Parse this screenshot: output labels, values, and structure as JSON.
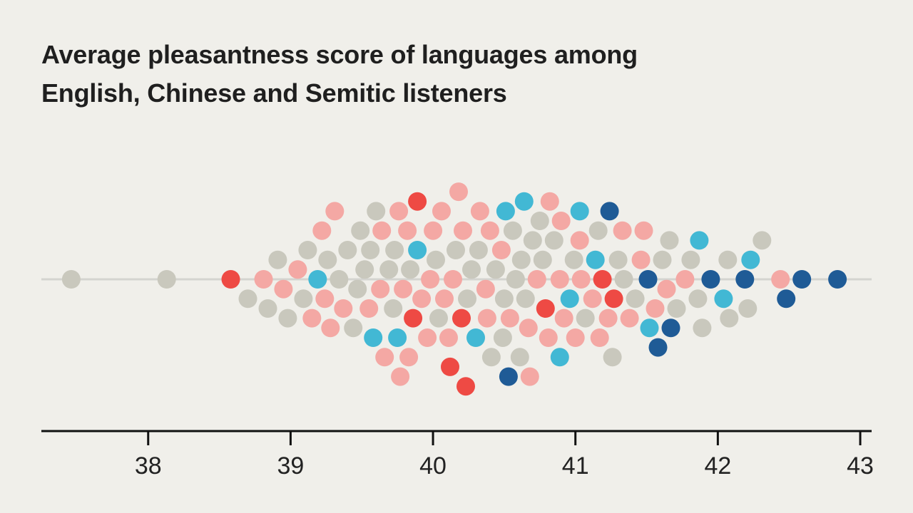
{
  "chart_data": {
    "type": "scatter",
    "title_lines": [
      "Average pleasantness score of languages among",
      "English, Chinese and Semitic listeners"
    ],
    "xlabel": "",
    "ylabel": "",
    "xlim": [
      37.25,
      43.08
    ],
    "x_ticks": [
      38,
      39,
      40,
      41,
      42,
      43
    ],
    "x_tick_labels": [
      "38",
      "39",
      "40",
      "41",
      "42",
      "43"
    ],
    "grid": false,
    "legend": "none",
    "categories": [
      {
        "key": "grey",
        "color": "#c9c8bd"
      },
      {
        "key": "pink",
        "color": "#f4a8a4"
      },
      {
        "key": "red",
        "color": "#ee4a44"
      },
      {
        "key": "cyan",
        "color": "#42b8d4"
      },
      {
        "key": "navy",
        "color": "#1f5b96"
      }
    ],
    "points": [
      {
        "x": 37.46,
        "c": "grey"
      },
      {
        "x": 38.13,
        "c": "grey"
      },
      {
        "x": 38.58,
        "c": "red"
      },
      {
        "x": 38.7,
        "c": "grey"
      },
      {
        "x": 38.81,
        "c": "pink"
      },
      {
        "x": 38.84,
        "c": "grey"
      },
      {
        "x": 38.91,
        "c": "grey"
      },
      {
        "x": 38.95,
        "c": "pink"
      },
      {
        "x": 38.98,
        "c": "grey"
      },
      {
        "x": 39.05,
        "c": "pink"
      },
      {
        "x": 39.09,
        "c": "grey"
      },
      {
        "x": 39.12,
        "c": "grey"
      },
      {
        "x": 39.15,
        "c": "pink"
      },
      {
        "x": 39.19,
        "c": "cyan"
      },
      {
        "x": 39.22,
        "c": "pink"
      },
      {
        "x": 39.24,
        "c": "pink"
      },
      {
        "x": 39.26,
        "c": "grey"
      },
      {
        "x": 39.28,
        "c": "pink"
      },
      {
        "x": 39.31,
        "c": "pink"
      },
      {
        "x": 39.34,
        "c": "grey"
      },
      {
        "x": 39.37,
        "c": "pink"
      },
      {
        "x": 39.4,
        "c": "grey"
      },
      {
        "x": 39.44,
        "c": "grey"
      },
      {
        "x": 39.47,
        "c": "grey"
      },
      {
        "x": 39.49,
        "c": "grey"
      },
      {
        "x": 39.52,
        "c": "grey"
      },
      {
        "x": 39.55,
        "c": "pink"
      },
      {
        "x": 39.56,
        "c": "grey"
      },
      {
        "x": 39.58,
        "c": "cyan"
      },
      {
        "x": 39.6,
        "c": "grey"
      },
      {
        "x": 39.63,
        "c": "pink"
      },
      {
        "x": 39.64,
        "c": "pink"
      },
      {
        "x": 39.66,
        "c": "pink"
      },
      {
        "x": 39.69,
        "c": "grey"
      },
      {
        "x": 39.72,
        "c": "grey"
      },
      {
        "x": 39.73,
        "c": "grey"
      },
      {
        "x": 39.75,
        "c": "cyan"
      },
      {
        "x": 39.76,
        "c": "pink"
      },
      {
        "x": 39.77,
        "c": "pink"
      },
      {
        "x": 39.79,
        "c": "pink"
      },
      {
        "x": 39.82,
        "c": "pink"
      },
      {
        "x": 39.83,
        "c": "pink"
      },
      {
        "x": 39.84,
        "c": "grey"
      },
      {
        "x": 39.86,
        "c": "red"
      },
      {
        "x": 39.89,
        "c": "cyan"
      },
      {
        "x": 39.89,
        "c": "red"
      },
      {
        "x": 39.92,
        "c": "pink"
      },
      {
        "x": 39.96,
        "c": "pink"
      },
      {
        "x": 39.98,
        "c": "pink"
      },
      {
        "x": 40.0,
        "c": "pink"
      },
      {
        "x": 40.02,
        "c": "grey"
      },
      {
        "x": 40.04,
        "c": "grey"
      },
      {
        "x": 40.06,
        "c": "pink"
      },
      {
        "x": 40.08,
        "c": "pink"
      },
      {
        "x": 40.11,
        "c": "pink"
      },
      {
        "x": 40.12,
        "c": "red"
      },
      {
        "x": 40.14,
        "c": "pink"
      },
      {
        "x": 40.16,
        "c": "grey"
      },
      {
        "x": 40.18,
        "c": "pink"
      },
      {
        "x": 40.2,
        "c": "red"
      },
      {
        "x": 40.21,
        "c": "pink"
      },
      {
        "x": 40.23,
        "c": "red"
      },
      {
        "x": 40.24,
        "c": "grey"
      },
      {
        "x": 40.27,
        "c": "grey"
      },
      {
        "x": 40.3,
        "c": "cyan"
      },
      {
        "x": 40.32,
        "c": "grey"
      },
      {
        "x": 40.33,
        "c": "pink"
      },
      {
        "x": 40.37,
        "c": "pink"
      },
      {
        "x": 40.38,
        "c": "pink"
      },
      {
        "x": 40.4,
        "c": "pink"
      },
      {
        "x": 40.41,
        "c": "grey"
      },
      {
        "x": 40.44,
        "c": "grey"
      },
      {
        "x": 40.48,
        "c": "pink"
      },
      {
        "x": 40.49,
        "c": "grey"
      },
      {
        "x": 40.5,
        "c": "grey"
      },
      {
        "x": 40.51,
        "c": "cyan"
      },
      {
        "x": 40.53,
        "c": "navy"
      },
      {
        "x": 40.54,
        "c": "pink"
      },
      {
        "x": 40.56,
        "c": "grey"
      },
      {
        "x": 40.58,
        "c": "grey"
      },
      {
        "x": 40.61,
        "c": "grey"
      },
      {
        "x": 40.62,
        "c": "grey"
      },
      {
        "x": 40.64,
        "c": "cyan"
      },
      {
        "x": 40.65,
        "c": "grey"
      },
      {
        "x": 40.67,
        "c": "pink"
      },
      {
        "x": 40.68,
        "c": "pink"
      },
      {
        "x": 40.7,
        "c": "grey"
      },
      {
        "x": 40.73,
        "c": "pink"
      },
      {
        "x": 40.75,
        "c": "grey"
      },
      {
        "x": 40.77,
        "c": "grey"
      },
      {
        "x": 40.79,
        "c": "red"
      },
      {
        "x": 40.81,
        "c": "pink"
      },
      {
        "x": 40.82,
        "c": "pink"
      },
      {
        "x": 40.85,
        "c": "grey"
      },
      {
        "x": 40.89,
        "c": "pink"
      },
      {
        "x": 40.89,
        "c": "cyan"
      },
      {
        "x": 40.9,
        "c": "pink"
      },
      {
        "x": 40.92,
        "c": "pink"
      },
      {
        "x": 40.96,
        "c": "cyan"
      },
      {
        "x": 40.99,
        "c": "grey"
      },
      {
        "x": 41.0,
        "c": "pink"
      },
      {
        "x": 41.03,
        "c": "pink"
      },
      {
        "x": 41.03,
        "c": "cyan"
      },
      {
        "x": 41.04,
        "c": "pink"
      },
      {
        "x": 41.07,
        "c": "grey"
      },
      {
        "x": 41.12,
        "c": "pink"
      },
      {
        "x": 41.14,
        "c": "cyan"
      },
      {
        "x": 41.16,
        "c": "grey"
      },
      {
        "x": 41.17,
        "c": "pink"
      },
      {
        "x": 41.19,
        "c": "red"
      },
      {
        "x": 41.23,
        "c": "pink"
      },
      {
        "x": 41.24,
        "c": "navy"
      },
      {
        "x": 41.26,
        "c": "grey"
      },
      {
        "x": 41.27,
        "c": "red"
      },
      {
        "x": 41.3,
        "c": "grey"
      },
      {
        "x": 41.33,
        "c": "pink"
      },
      {
        "x": 41.34,
        "c": "grey"
      },
      {
        "x": 41.38,
        "c": "pink"
      },
      {
        "x": 41.42,
        "c": "grey"
      },
      {
        "x": 41.46,
        "c": "pink"
      },
      {
        "x": 41.48,
        "c": "pink"
      },
      {
        "x": 41.51,
        "c": "navy"
      },
      {
        "x": 41.52,
        "c": "cyan"
      },
      {
        "x": 41.56,
        "c": "pink"
      },
      {
        "x": 41.58,
        "c": "navy"
      },
      {
        "x": 41.61,
        "c": "grey"
      },
      {
        "x": 41.64,
        "c": "pink"
      },
      {
        "x": 41.66,
        "c": "grey"
      },
      {
        "x": 41.67,
        "c": "navy"
      },
      {
        "x": 41.71,
        "c": "grey"
      },
      {
        "x": 41.77,
        "c": "pink"
      },
      {
        "x": 41.81,
        "c": "grey"
      },
      {
        "x": 41.86,
        "c": "grey"
      },
      {
        "x": 41.87,
        "c": "cyan"
      },
      {
        "x": 41.89,
        "c": "grey"
      },
      {
        "x": 41.95,
        "c": "navy"
      },
      {
        "x": 42.04,
        "c": "cyan"
      },
      {
        "x": 42.07,
        "c": "grey"
      },
      {
        "x": 42.08,
        "c": "grey"
      },
      {
        "x": 42.19,
        "c": "navy"
      },
      {
        "x": 42.21,
        "c": "grey"
      },
      {
        "x": 42.23,
        "c": "cyan"
      },
      {
        "x": 42.31,
        "c": "grey"
      },
      {
        "x": 42.44,
        "c": "pink"
      },
      {
        "x": 42.48,
        "c": "navy"
      },
      {
        "x": 42.59,
        "c": "navy"
      },
      {
        "x": 42.84,
        "c": "navy"
      }
    ]
  }
}
